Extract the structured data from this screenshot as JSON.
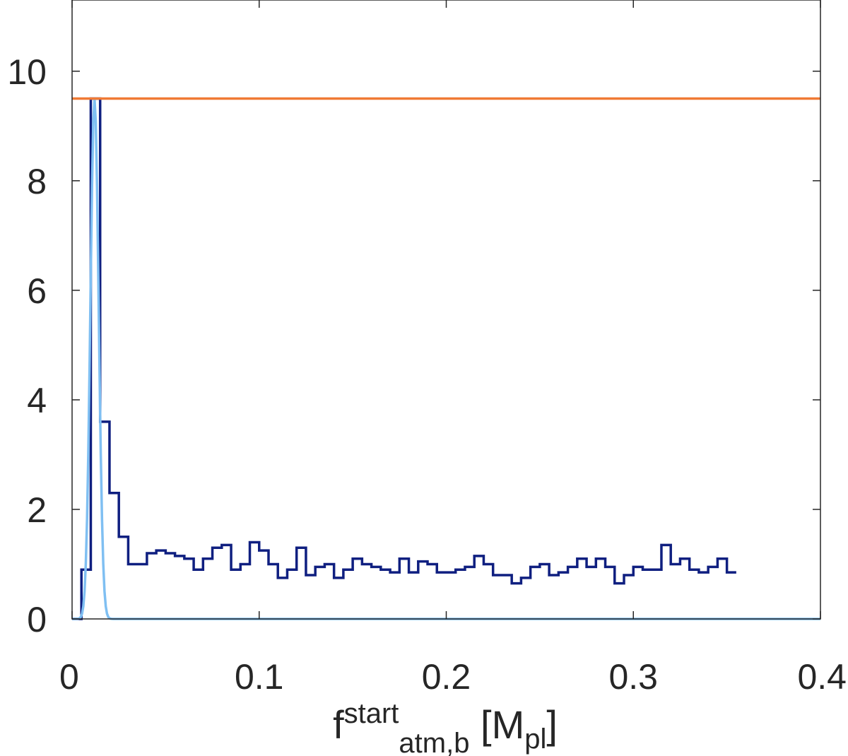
{
  "chart_data": {
    "type": "line",
    "title": "",
    "xlim": [
      0,
      0.4
    ],
    "ylim": [
      0,
      11.3
    ],
    "grid": false,
    "legend": "none",
    "xlabel": {
      "base": "f",
      "superscript": "start",
      "subscript": "atm,b",
      "unit_open": " [M",
      "unit_subscript": "pl",
      "unit_close": "]"
    },
    "ylabel": "",
    "x_ticks": [
      {
        "value": 0,
        "label": "0"
      },
      {
        "value": 0.1,
        "label": "0.1"
      },
      {
        "value": 0.2,
        "label": "0.2"
      },
      {
        "value": 0.3,
        "label": "0.3"
      },
      {
        "value": 0.4,
        "label": "0.4"
      }
    ],
    "y_ticks": [
      {
        "value": 0,
        "label": "0"
      },
      {
        "value": 2,
        "label": "2"
      },
      {
        "value": 4,
        "label": "4"
      },
      {
        "value": 6,
        "label": "6"
      },
      {
        "value": 8,
        "label": "8"
      },
      {
        "value": 10,
        "label": "10"
      }
    ],
    "series": [
      {
        "kind": "histogram",
        "color": "#0f1f80",
        "bin_width": 0.005,
        "x_start": 0,
        "values": [
          0,
          0.9,
          9.5,
          3.6,
          2.3,
          1.5,
          1.0,
          1.0,
          1.2,
          1.25,
          1.2,
          1.15,
          1.1,
          0.9,
          1.1,
          1.3,
          1.35,
          0.9,
          1.0,
          1.4,
          1.25,
          1.0,
          0.75,
          0.9,
          1.3,
          0.8,
          0.95,
          1.0,
          0.75,
          0.9,
          1.1,
          1.0,
          0.95,
          0.9,
          0.85,
          1.1,
          0.85,
          1.05,
          1.0,
          0.85,
          0.85,
          0.9,
          0.95,
          1.15,
          1.0,
          0.8,
          0.8,
          0.65,
          0.75,
          0.95,
          1.0,
          0.8,
          0.85,
          0.95,
          1.1,
          0.95,
          1.1,
          0.95,
          0.65,
          0.8,
          0.95,
          0.9,
          0.9,
          1.35,
          1.0,
          1.1,
          0.9,
          0.85,
          0.95,
          1.1,
          0.85
        ]
      },
      {
        "kind": "curve",
        "color": "#7fbff2",
        "shape": "gaussian",
        "mean": 0.012,
        "sigma": 0.0022,
        "peak": 9.5
      },
      {
        "kind": "horizontal-line",
        "color": "#f07a35",
        "y": 9.5
      }
    ]
  }
}
